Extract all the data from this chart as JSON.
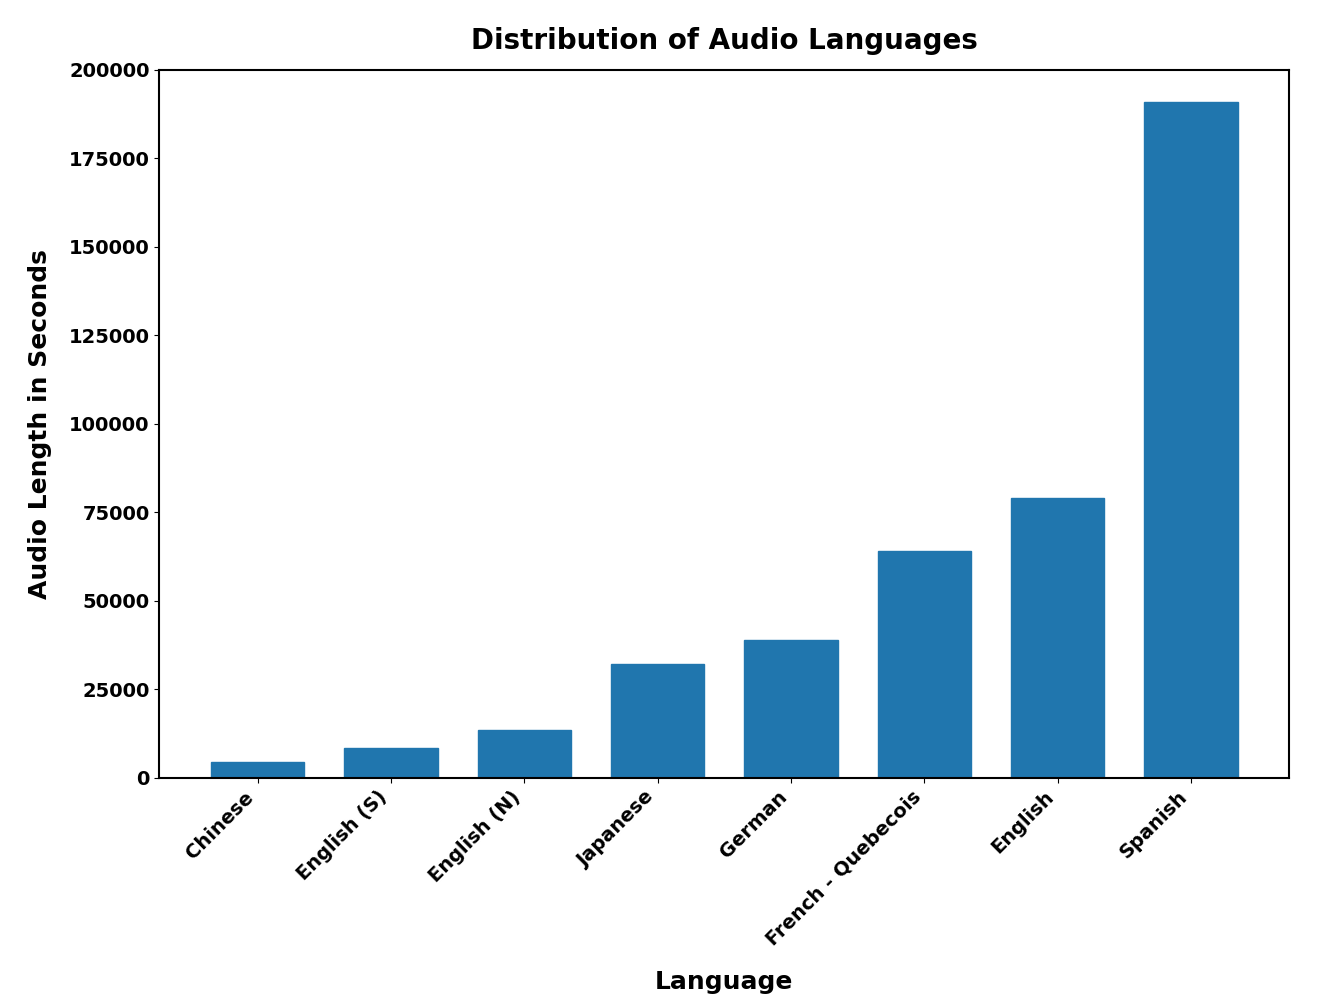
{
  "categories": [
    "Chinese",
    "English (S)",
    "English (N)",
    "Japanese",
    "German",
    "French - Quebecois",
    "English",
    "Spanish"
  ],
  "values": [
    4500,
    8500,
    13500,
    32000,
    39000,
    64000,
    79000,
    191000
  ],
  "bar_color": "#2076ae",
  "title": "Distribution of Audio Languages",
  "xlabel": "Language",
  "ylabel": "Audio Length in Seconds",
  "ylim": [
    0,
    200000
  ],
  "yticks": [
    0,
    25000,
    50000,
    75000,
    100000,
    125000,
    150000,
    175000,
    200000
  ],
  "title_fontsize": 20,
  "label_fontsize": 18,
  "tick_fontsize": 14,
  "background_color": "#ffffff",
  "bar_width": 0.7
}
